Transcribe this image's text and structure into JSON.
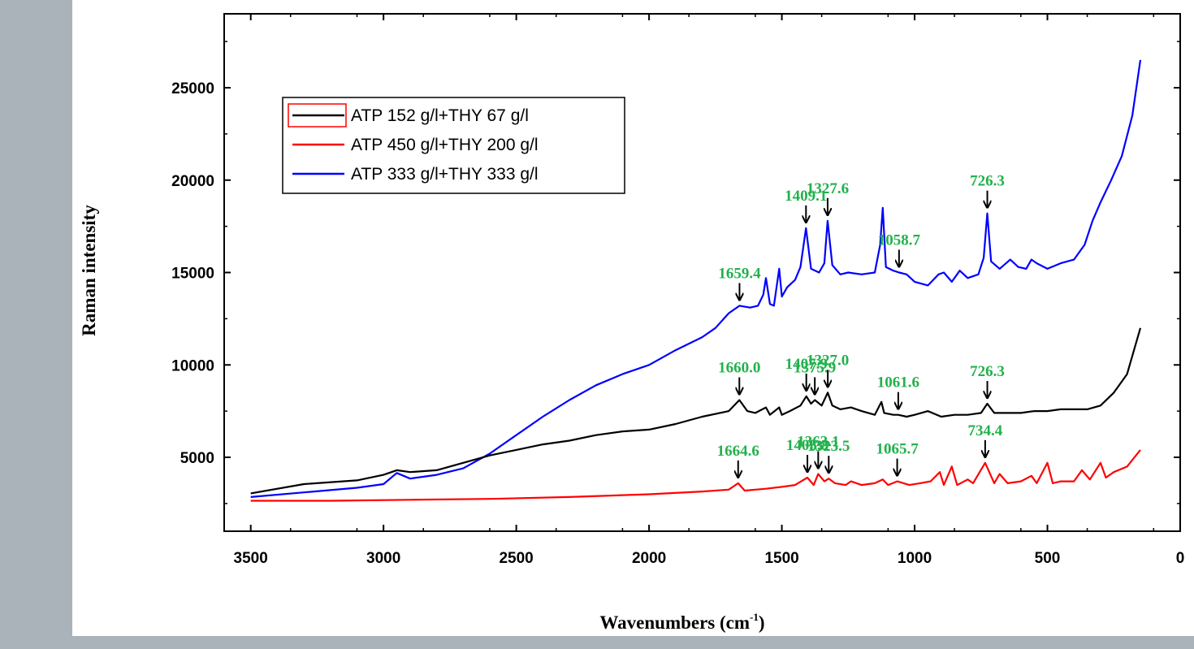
{
  "chart_data": {
    "type": "line",
    "xlabel": "Wavenumbers (cm",
    "xlabel_sup": "-1",
    "xlabel_close": ")",
    "ylabel": "Raman intensity",
    "xlim": [
      3600,
      0
    ],
    "ylim": [
      1000,
      29000
    ],
    "x_reversed": true,
    "x_ticks": [
      {
        "value": 3500,
        "label": "3500"
      },
      {
        "value": 3000,
        "label": "3000"
      },
      {
        "value": 2500,
        "label": "2500"
      },
      {
        "value": 2000,
        "label": "2000"
      },
      {
        "value": 1500,
        "label": "1500"
      },
      {
        "value": 1000,
        "label": "1000"
      },
      {
        "value": 500,
        "label": "500"
      },
      {
        "value": 0,
        "label": "0"
      }
    ],
    "y_ticks": [
      {
        "value": 5000,
        "label": "5000"
      },
      {
        "value": 10000,
        "label": "10000"
      },
      {
        "value": 15000,
        "label": "15000"
      },
      {
        "value": 20000,
        "label": "20000"
      },
      {
        "value": 25000,
        "label": "25000"
      }
    ],
    "legend_position": "top-left",
    "legend": [
      {
        "label": "ATP 152 g/l+THY 67 g/l",
        "color": "#000000",
        "swatch": "box"
      },
      {
        "label": "ATP 450 g/l+THY 200 g/l",
        "color": "#ff0000",
        "swatch": "line"
      },
      {
        "label": "ATP 333 g/l+THY 333 g/l",
        "color": "#0000ff",
        "swatch": "line"
      }
    ],
    "series": [
      {
        "name": "ATP 333 g/l+THY 333 g/l",
        "color": "#0000ff",
        "points": [
          [
            3500,
            2850
          ],
          [
            3300,
            3100
          ],
          [
            3100,
            3350
          ],
          [
            3000,
            3550
          ],
          [
            2950,
            4150
          ],
          [
            2900,
            3850
          ],
          [
            2800,
            4050
          ],
          [
            2700,
            4400
          ],
          [
            2600,
            5200
          ],
          [
            2500,
            6200
          ],
          [
            2400,
            7200
          ],
          [
            2300,
            8100
          ],
          [
            2200,
            8900
          ],
          [
            2100,
            9500
          ],
          [
            2000,
            10000
          ],
          [
            1900,
            10800
          ],
          [
            1800,
            11500
          ],
          [
            1750,
            12000
          ],
          [
            1700,
            12800
          ],
          [
            1659.4,
            13200
          ],
          [
            1620,
            13100
          ],
          [
            1590,
            13200
          ],
          [
            1570,
            13800
          ],
          [
            1560,
            14700
          ],
          [
            1545,
            13300
          ],
          [
            1530,
            13200
          ],
          [
            1510,
            15200
          ],
          [
            1500,
            13700
          ],
          [
            1480,
            14200
          ],
          [
            1450,
            14600
          ],
          [
            1430,
            15300
          ],
          [
            1409.1,
            17400
          ],
          [
            1390,
            15200
          ],
          [
            1360,
            15000
          ],
          [
            1340,
            15500
          ],
          [
            1327.6,
            17800
          ],
          [
            1310,
            15400
          ],
          [
            1280,
            14900
          ],
          [
            1250,
            15000
          ],
          [
            1200,
            14900
          ],
          [
            1150,
            15000
          ],
          [
            1130,
            16500
          ],
          [
            1120,
            18500
          ],
          [
            1108,
            15300
          ],
          [
            1080,
            15100
          ],
          [
            1058.7,
            15000
          ],
          [
            1030,
            14900
          ],
          [
            1000,
            14500
          ],
          [
            950,
            14300
          ],
          [
            910,
            14900
          ],
          [
            890,
            15000
          ],
          [
            860,
            14500
          ],
          [
            830,
            15100
          ],
          [
            800,
            14700
          ],
          [
            760,
            14900
          ],
          [
            740,
            15800
          ],
          [
            726.3,
            18200
          ],
          [
            712,
            15600
          ],
          [
            680,
            15200
          ],
          [
            640,
            15700
          ],
          [
            610,
            15300
          ],
          [
            580,
            15200
          ],
          [
            560,
            15700
          ],
          [
            540,
            15500
          ],
          [
            500,
            15200
          ],
          [
            450,
            15500
          ],
          [
            400,
            15700
          ],
          [
            360,
            16500
          ],
          [
            330,
            17800
          ],
          [
            300,
            18800
          ],
          [
            260,
            20000
          ],
          [
            220,
            21300
          ],
          [
            180,
            23500
          ],
          [
            150,
            26500
          ]
        ]
      },
      {
        "name": "ATP 152 g/l+THY 67 g/l",
        "color": "#000000",
        "points": [
          [
            3500,
            3050
          ],
          [
            3300,
            3550
          ],
          [
            3100,
            3750
          ],
          [
            3000,
            4050
          ],
          [
            2950,
            4300
          ],
          [
            2900,
            4200
          ],
          [
            2800,
            4300
          ],
          [
            2700,
            4700
          ],
          [
            2600,
            5100
          ],
          [
            2500,
            5400
          ],
          [
            2400,
            5700
          ],
          [
            2300,
            5900
          ],
          [
            2200,
            6200
          ],
          [
            2100,
            6400
          ],
          [
            2000,
            6500
          ],
          [
            1900,
            6800
          ],
          [
            1800,
            7200
          ],
          [
            1700,
            7500
          ],
          [
            1660,
            8100
          ],
          [
            1630,
            7500
          ],
          [
            1600,
            7400
          ],
          [
            1560,
            7700
          ],
          [
            1545,
            7300
          ],
          [
            1510,
            7700
          ],
          [
            1500,
            7300
          ],
          [
            1470,
            7500
          ],
          [
            1430,
            7800
          ],
          [
            1407.9,
            8300
          ],
          [
            1390,
            7900
          ],
          [
            1375.9,
            8100
          ],
          [
            1350,
            7800
          ],
          [
            1327,
            8500
          ],
          [
            1310,
            7800
          ],
          [
            1280,
            7600
          ],
          [
            1240,
            7700
          ],
          [
            1200,
            7500
          ],
          [
            1150,
            7300
          ],
          [
            1125,
            8000
          ],
          [
            1115,
            7400
          ],
          [
            1080,
            7300
          ],
          [
            1061.6,
            7300
          ],
          [
            1030,
            7200
          ],
          [
            1000,
            7300
          ],
          [
            950,
            7500
          ],
          [
            900,
            7200
          ],
          [
            850,
            7300
          ],
          [
            800,
            7300
          ],
          [
            750,
            7400
          ],
          [
            726.3,
            7900
          ],
          [
            700,
            7400
          ],
          [
            650,
            7400
          ],
          [
            600,
            7400
          ],
          [
            550,
            7500
          ],
          [
            500,
            7500
          ],
          [
            450,
            7600
          ],
          [
            400,
            7600
          ],
          [
            350,
            7600
          ],
          [
            300,
            7800
          ],
          [
            250,
            8500
          ],
          [
            200,
            9500
          ],
          [
            150,
            12000
          ]
        ]
      },
      {
        "name": "ATP 450 g/l+THY 200 g/l",
        "color": "#ff0000",
        "points": [
          [
            3500,
            2650
          ],
          [
            3200,
            2650
          ],
          [
            2900,
            2700
          ],
          [
            2600,
            2750
          ],
          [
            2300,
            2850
          ],
          [
            2000,
            3000
          ],
          [
            1800,
            3150
          ],
          [
            1700,
            3250
          ],
          [
            1664.6,
            3600
          ],
          [
            1640,
            3200
          ],
          [
            1560,
            3300
          ],
          [
            1500,
            3400
          ],
          [
            1450,
            3500
          ],
          [
            1403.8,
            3900
          ],
          [
            1380,
            3500
          ],
          [
            1363.1,
            4100
          ],
          [
            1340,
            3700
          ],
          [
            1323.5,
            3850
          ],
          [
            1300,
            3600
          ],
          [
            1260,
            3500
          ],
          [
            1240,
            3700
          ],
          [
            1200,
            3500
          ],
          [
            1150,
            3600
          ],
          [
            1120,
            3800
          ],
          [
            1100,
            3500
          ],
          [
            1065.7,
            3700
          ],
          [
            1020,
            3500
          ],
          [
            980,
            3600
          ],
          [
            940,
            3700
          ],
          [
            905,
            4200
          ],
          [
            890,
            3500
          ],
          [
            860,
            4500
          ],
          [
            840,
            3500
          ],
          [
            800,
            3800
          ],
          [
            780,
            3600
          ],
          [
            734.4,
            4700
          ],
          [
            700,
            3600
          ],
          [
            680,
            4100
          ],
          [
            650,
            3600
          ],
          [
            600,
            3700
          ],
          [
            560,
            4000
          ],
          [
            540,
            3600
          ],
          [
            500,
            4700
          ],
          [
            480,
            3600
          ],
          [
            450,
            3700
          ],
          [
            400,
            3700
          ],
          [
            370,
            4300
          ],
          [
            340,
            3800
          ],
          [
            300,
            4700
          ],
          [
            280,
            3900
          ],
          [
            250,
            4200
          ],
          [
            200,
            4500
          ],
          [
            150,
            5400
          ]
        ]
      }
    ],
    "annotations": [
      {
        "text": "726.3",
        "x": 726.3,
        "y": 18200,
        "series": "blue"
      },
      {
        "text": "1058.7",
        "x": 1058.7,
        "y": 15000,
        "series": "blue"
      },
      {
        "text": "1327.6",
        "x": 1327.6,
        "y": 17800,
        "series": "blue"
      },
      {
        "text": "1409.1",
        "x": 1409.1,
        "y": 17400,
        "series": "blue"
      },
      {
        "text": "1659.4",
        "x": 1659.4,
        "y": 13200,
        "series": "blue"
      },
      {
        "text": "1660.0",
        "x": 1660.0,
        "y": 8100,
        "series": "black"
      },
      {
        "text": "1407.9",
        "x": 1407.9,
        "y": 8300,
        "series": "black"
      },
      {
        "text": "1375.9",
        "x": 1375.9,
        "y": 8100,
        "series": "black"
      },
      {
        "text": "1327.0",
        "x": 1327.0,
        "y": 8500,
        "series": "black"
      },
      {
        "text": "1061.6",
        "x": 1061.6,
        "y": 7300,
        "series": "black"
      },
      {
        "text": "726.3",
        "x": 726.3,
        "y": 7900,
        "series": "black"
      },
      {
        "text": "1664.6",
        "x": 1664.6,
        "y": 3600,
        "series": "red"
      },
      {
        "text": "1403.8",
        "x": 1403.8,
        "y": 3900,
        "series": "red"
      },
      {
        "text": "1323.5",
        "x": 1323.5,
        "y": 3850,
        "series": "red"
      },
      {
        "text": "1363.1",
        "x": 1363.1,
        "y": 4100,
        "series": "red"
      },
      {
        "text": "1065.7",
        "x": 1065.7,
        "y": 3700,
        "series": "red"
      },
      {
        "text": "734.4",
        "x": 734.4,
        "y": 4700,
        "series": "red"
      }
    ]
  },
  "colors": {
    "background": "#a9b3b9",
    "panel": "#ffffff",
    "annotation": "#22b14c"
  }
}
